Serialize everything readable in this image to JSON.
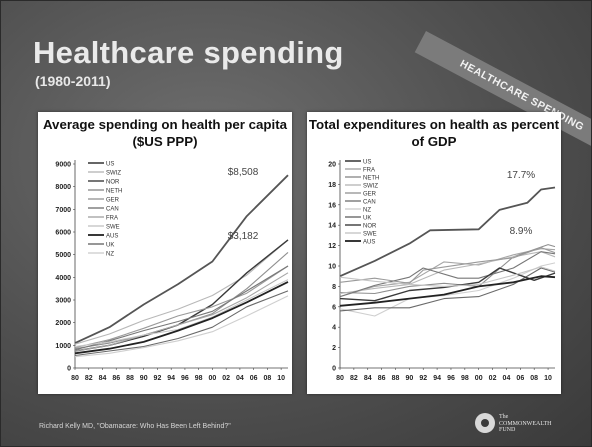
{
  "slide": {
    "title": "Healthcare spending",
    "subtitle": "(1980-2011)",
    "banner": "HEALTHCARE SPENDING",
    "footer": "Richard Kelly MD, \"Obamacare: Who Has Been Left Behind?\"",
    "logo_text": "The\nCOMMONWEALTH\nFUND"
  },
  "colors": {
    "US": "#555555",
    "SWIZ": "#b8b8b8",
    "NOR": "#3a3a3a",
    "NETH": "#8f8f8f",
    "GER": "#9a9a9a",
    "CAN": "#777777",
    "FRA": "#a6a6a6",
    "SWE": "#c6c6c6",
    "AUS": "#222222",
    "UK": "#6a6a6a",
    "NZ": "#cfcfcf"
  },
  "chart_data": [
    {
      "type": "line",
      "title": "Average spending on health per capita ($US PPP)",
      "xlabel": "",
      "ylabel": "",
      "x_ticks": [
        "80",
        "82",
        "84",
        "86",
        "88",
        "90",
        "92",
        "94",
        "96",
        "98",
        "00",
        "02",
        "04",
        "06",
        "08",
        "10"
      ],
      "y_ticks": [
        0,
        1000,
        2000,
        3000,
        4000,
        5000,
        6000,
        7000,
        8000,
        9000
      ],
      "ylim": [
        0,
        9000
      ],
      "xlim": [
        1980,
        2011
      ],
      "annotations": [
        "$8,508",
        "$3,182"
      ],
      "legend": [
        "US",
        "SWIZ",
        "NOR",
        "NETH",
        "GER",
        "CAN",
        "FRA",
        "SWE",
        "AUS",
        "UK",
        "NZ"
      ],
      "series": [
        {
          "name": "US",
          "points": [
            [
              1980,
              1100
            ],
            [
              1985,
              1800
            ],
            [
              1990,
              2800
            ],
            [
              1995,
              3700
            ],
            [
              2000,
              4700
            ],
            [
              2005,
              6700
            ],
            [
              2011,
              8508
            ]
          ]
        },
        {
          "name": "SWIZ",
          "points": [
            [
              1980,
              1050
            ],
            [
              1985,
              1500
            ],
            [
              1990,
              2100
            ],
            [
              1995,
              2600
            ],
            [
              2000,
              3200
            ],
            [
              2005,
              4100
            ],
            [
              2011,
              5650
            ]
          ]
        },
        {
          "name": "NOR",
          "points": [
            [
              1980,
              750
            ],
            [
              1985,
              1000
            ],
            [
              1990,
              1400
            ],
            [
              1995,
              1900
            ],
            [
              2000,
              2800
            ],
            [
              2005,
              4200
            ],
            [
              2011,
              5650
            ]
          ]
        },
        {
          "name": "NETH",
          "points": [
            [
              1980,
              850
            ],
            [
              1985,
              1100
            ],
            [
              1990,
              1450
            ],
            [
              1995,
              1900
            ],
            [
              2000,
              2400
            ],
            [
              2005,
              3500
            ],
            [
              2011,
              5100
            ]
          ]
        },
        {
          "name": "GER",
          "points": [
            [
              1980,
              900
            ],
            [
              1985,
              1250
            ],
            [
              1990,
              1750
            ],
            [
              1995,
              2300
            ],
            [
              2000,
              2700
            ],
            [
              2005,
              3300
            ],
            [
              2011,
              4500
            ]
          ]
        },
        {
          "name": "CAN",
          "points": [
            [
              1980,
              800
            ],
            [
              1985,
              1200
            ],
            [
              1990,
              1650
            ],
            [
              1995,
              2050
            ],
            [
              2000,
              2500
            ],
            [
              2005,
              3400
            ],
            [
              2011,
              4500
            ]
          ]
        },
        {
          "name": "FRA",
          "points": [
            [
              1980,
              750
            ],
            [
              1985,
              1000
            ],
            [
              1990,
              1450
            ],
            [
              1995,
              1900
            ],
            [
              2000,
              2350
            ],
            [
              2005,
              3100
            ],
            [
              2011,
              4200
            ]
          ]
        },
        {
          "name": "SWE",
          "points": [
            [
              1980,
              950
            ],
            [
              1985,
              1150
            ],
            [
              1990,
              1450
            ],
            [
              1995,
              1700
            ],
            [
              2000,
              2250
            ],
            [
              2005,
              3000
            ],
            [
              2011,
              3900
            ]
          ]
        },
        {
          "name": "AUS",
          "points": [
            [
              1980,
              650
            ],
            [
              1985,
              850
            ],
            [
              1990,
              1150
            ],
            [
              1995,
              1650
            ],
            [
              2000,
              2200
            ],
            [
              2005,
              2900
            ],
            [
              2011,
              3800
            ]
          ]
        },
        {
          "name": "UK",
          "points": [
            [
              1980,
              550
            ],
            [
              1985,
              750
            ],
            [
              1990,
              950
            ],
            [
              1995,
              1300
            ],
            [
              2000,
              1800
            ],
            [
              2005,
              2700
            ],
            [
              2011,
              3400
            ]
          ]
        },
        {
          "name": "NZ",
          "points": [
            [
              1980,
              500
            ],
            [
              1985,
              650
            ],
            [
              1990,
              900
            ],
            [
              1995,
              1200
            ],
            [
              2000,
              1600
            ],
            [
              2005,
              2300
            ],
            [
              2011,
              3182
            ]
          ]
        }
      ]
    },
    {
      "type": "line",
      "title": "Total expenditures on health as percent of GDP",
      "xlabel": "",
      "ylabel": "",
      "x_ticks": [
        "80",
        "82",
        "84",
        "86",
        "88",
        "90",
        "92",
        "94",
        "96",
        "98",
        "00",
        "02",
        "04",
        "06",
        "08",
        "10"
      ],
      "y_ticks": [
        0,
        2,
        4,
        6,
        8,
        10,
        12,
        14,
        16,
        18,
        20
      ],
      "ylim": [
        0,
        20
      ],
      "xlim": [
        1980,
        2011
      ],
      "annotations": [
        "17.7%",
        "8.9%"
      ],
      "legend": [
        "US",
        "FRA",
        "NETH",
        "SWIZ",
        "GER",
        "CAN",
        "NZ",
        "UK",
        "NOR",
        "SWE",
        "AUS"
      ],
      "series": [
        {
          "name": "US",
          "points": [
            [
              1980,
              9.0
            ],
            [
              1985,
              10.5
            ],
            [
              1990,
              12.2
            ],
            [
              1993,
              13.5
            ],
            [
              2000,
              13.6
            ],
            [
              2003,
              15.5
            ],
            [
              2007,
              16.2
            ],
            [
              2009,
              17.5
            ],
            [
              2011,
              17.7
            ]
          ]
        },
        {
          "name": "FRA",
          "points": [
            [
              1980,
              7.0
            ],
            [
              1985,
              8.0
            ],
            [
              1990,
              8.4
            ],
            [
              1995,
              10.4
            ],
            [
              2000,
              10.1
            ],
            [
              2005,
              11.1
            ],
            [
              2009,
              11.7
            ],
            [
              2011,
              11.6
            ]
          ]
        },
        {
          "name": "NETH",
          "points": [
            [
              1980,
              7.4
            ],
            [
              1985,
              7.3
            ],
            [
              1990,
              8.0
            ],
            [
              1995,
              8.3
            ],
            [
              2000,
              8.0
            ],
            [
              2005,
              10.9
            ],
            [
              2010,
              12.1
            ],
            [
              2011,
              11.9
            ]
          ]
        },
        {
          "name": "SWIZ",
          "points": [
            [
              1980,
              7.3
            ],
            [
              1985,
              7.8
            ],
            [
              1990,
              8.2
            ],
            [
              1995,
              9.6
            ],
            [
              2000,
              10.2
            ],
            [
              2005,
              10.9
            ],
            [
              2009,
              11.4
            ],
            [
              2011,
              10.9
            ]
          ]
        },
        {
          "name": "GER",
          "points": [
            [
              1980,
              8.4
            ],
            [
              1985,
              8.8
            ],
            [
              1990,
              8.3
            ],
            [
              1992,
              9.6
            ],
            [
              2000,
              10.4
            ],
            [
              2005,
              10.8
            ],
            [
              2009,
              11.8
            ],
            [
              2011,
              11.3
            ]
          ]
        },
        {
          "name": "CAN",
          "points": [
            [
              1980,
              7.0
            ],
            [
              1985,
              8.1
            ],
            [
              1990,
              8.9
            ],
            [
              1992,
              9.8
            ],
            [
              1997,
              8.8
            ],
            [
              2000,
              8.8
            ],
            [
              2005,
              9.8
            ],
            [
              2009,
              11.4
            ],
            [
              2011,
              11.2
            ]
          ]
        },
        {
          "name": "NZ",
          "points": [
            [
              1980,
              5.8
            ],
            [
              1985,
              5.1
            ],
            [
              1990,
              6.8
            ],
            [
              1995,
              7.1
            ],
            [
              2000,
              7.6
            ],
            [
              2005,
              8.8
            ],
            [
              2009,
              10.0
            ],
            [
              2011,
              10.3
            ]
          ]
        },
        {
          "name": "UK",
          "points": [
            [
              1980,
              5.6
            ],
            [
              1985,
              5.9
            ],
            [
              1990,
              5.9
            ],
            [
              1995,
              6.8
            ],
            [
              2000,
              7.0
            ],
            [
              2005,
              8.2
            ],
            [
              2009,
              9.8
            ],
            [
              2011,
              9.4
            ]
          ]
        },
        {
          "name": "NOR",
          "points": [
            [
              1980,
              6.8
            ],
            [
              1985,
              6.6
            ],
            [
              1990,
              7.6
            ],
            [
              1995,
              7.9
            ],
            [
              2000,
              8.4
            ],
            [
              2003,
              9.8
            ],
            [
              2008,
              8.6
            ],
            [
              2011,
              9.3
            ]
          ]
        },
        {
          "name": "SWE",
          "points": [
            [
              1980,
              8.9
            ],
            [
              1985,
              8.5
            ],
            [
              1990,
              8.2
            ],
            [
              1995,
              8.0
            ],
            [
              2000,
              8.2
            ],
            [
              2005,
              9.1
            ],
            [
              2009,
              9.9
            ],
            [
              2011,
              9.5
            ]
          ]
        },
        {
          "name": "AUS",
          "points": [
            [
              1980,
              6.1
            ],
            [
              1985,
              6.4
            ],
            [
              1990,
              6.8
            ],
            [
              1995,
              7.2
            ],
            [
              2000,
              8.0
            ],
            [
              2005,
              8.4
            ],
            [
              2009,
              9.0
            ],
            [
              2011,
              8.9
            ]
          ]
        }
      ]
    }
  ]
}
